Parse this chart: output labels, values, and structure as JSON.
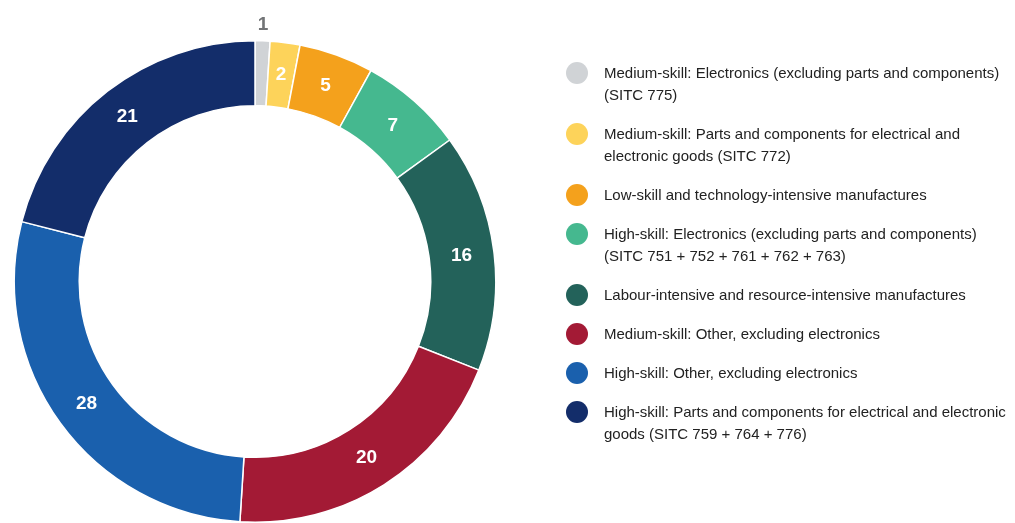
{
  "chart_data": {
    "type": "donut",
    "categories": [
      "Medium-skill: Electronics (excluding parts and components) (SITC 775)",
      "Medium-skill: Parts and components for electrical and electronic goods (SITC 772)",
      "Low-skill and technology-intensive manufactures",
      "High-skill: Electronics (excluding parts and components) (SITC 751 + 752 + 761 + 762 + 763)",
      "Labour-intensive and resource-intensive manufactures",
      "Medium-skill: Other, excluding electronics",
      "High-skill: Other, excluding electronics",
      "High-skill: Parts and components for electrical and electronic goods (SITC 759 + 764 + 776)"
    ],
    "values": [
      1,
      2,
      5,
      7,
      16,
      20,
      28,
      21
    ],
    "colors": [
      "#d0d3d6",
      "#fdd35a",
      "#f4a11c",
      "#45b88f",
      "#23625a",
      "#a31a35",
      "#1a60ad",
      "#132d6a"
    ],
    "data_labels": true,
    "legend": "right"
  }
}
